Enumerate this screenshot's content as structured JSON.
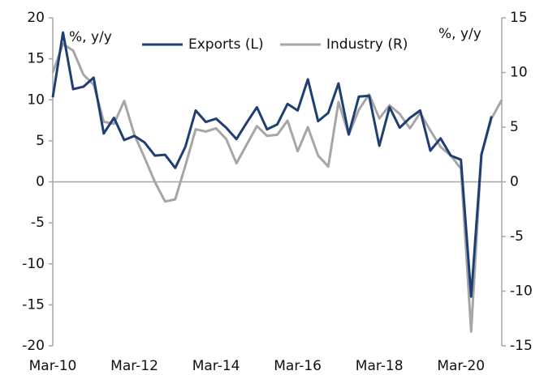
{
  "chart_data": {
    "type": "line",
    "y_unit_label": "%, y/y",
    "y2_unit_label": "%, y/y",
    "legend": "top",
    "categories": [
      "Mar-10",
      null,
      null,
      null,
      null,
      null,
      null,
      null,
      "Mar-12",
      null,
      null,
      null,
      null,
      null,
      null,
      null,
      "Mar-14",
      null,
      null,
      null,
      null,
      null,
      null,
      null,
      "Mar-16",
      null,
      null,
      null,
      null,
      null,
      null,
      null,
      "Mar-18",
      null,
      null,
      null,
      null,
      null,
      null,
      null,
      "Mar-20",
      null,
      null,
      null,
      null
    ],
    "series": [
      {
        "name": "Exports (L)",
        "color": "#1f3e73",
        "axis": "y",
        "values": [
          10.3,
          18.2,
          11.3,
          11.6,
          12.7,
          5.9,
          7.8,
          5.1,
          5.6,
          4.8,
          3.2,
          3.3,
          1.7,
          4.3,
          8.7,
          7.3,
          7.7,
          6.6,
          5.2,
          7.2,
          9.1,
          6.4,
          7.0,
          9.5,
          8.7,
          12.5,
          7.4,
          8.4,
          12.0,
          5.8,
          10.4,
          10.5,
          4.4,
          9.1,
          6.6,
          7.8,
          8.7,
          3.8,
          5.3,
          3.2,
          2.7,
          -14.0,
          3.3,
          8.0,
          null
        ]
      },
      {
        "name": "Industry (R)",
        "color": "#a6a6a6",
        "axis": "y2",
        "values": [
          10.0,
          12.6,
          12.0,
          9.8,
          8.9,
          5.5,
          5.3,
          7.4,
          4.3,
          2.2,
          0.0,
          -1.8,
          -1.6,
          1.5,
          4.8,
          4.6,
          4.9,
          3.9,
          1.7,
          3.4,
          5.1,
          4.2,
          4.3,
          5.6,
          2.8,
          5.0,
          2.4,
          1.4,
          7.3,
          4.3,
          6.6,
          8.0,
          5.8,
          7.0,
          6.2,
          4.9,
          6.3,
          4.7,
          3.2,
          2.4,
          1.2,
          -13.7,
          2.5,
          5.8,
          7.5
        ]
      }
    ],
    "ylim": [
      -20,
      20
    ],
    "yticks": [
      -20,
      -15,
      -10,
      -5,
      0,
      5,
      10,
      15,
      20
    ],
    "y2lim": [
      -15,
      15
    ],
    "y2ticks": [
      -15,
      -10,
      -5,
      0,
      5,
      10,
      15
    ]
  }
}
